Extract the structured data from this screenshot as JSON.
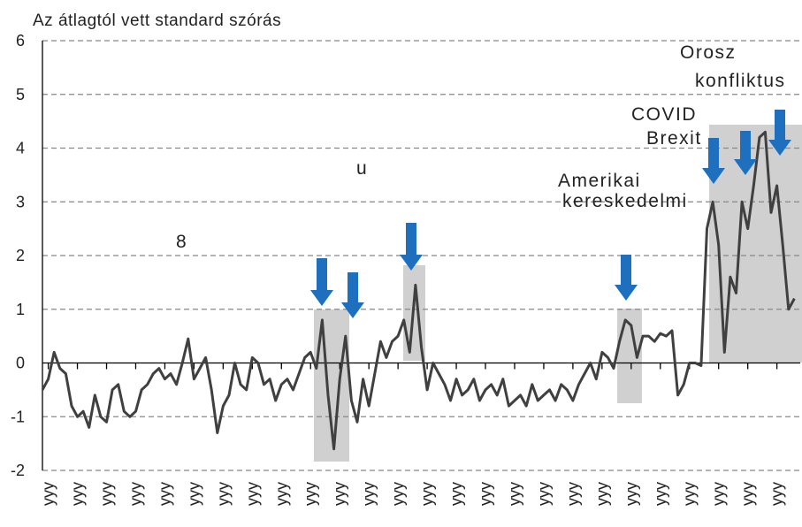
{
  "chart_data": {
    "type": "line",
    "title": "Az átlagtól vett standard szórás",
    "annotations": [
      "Orosz",
      "konfliktus",
      "COVID",
      "Brexit",
      "Amerikai",
      "kereskedelmi",
      "u",
      "8"
    ],
    "categories": [
      null,
      "yyy",
      null,
      null,
      null,
      null,
      "yyy",
      null,
      null,
      null,
      null,
      "yyy",
      null,
      null,
      null,
      null,
      "yyy",
      null,
      null,
      null,
      null,
      "yyy",
      null,
      null,
      null,
      null,
      "yyy",
      null,
      null,
      null,
      null,
      "yyy",
      null,
      null,
      null,
      null,
      "yyy",
      null,
      null,
      null,
      null,
      "yyy",
      null,
      null,
      null,
      null,
      "yyy",
      null,
      null,
      null,
      null,
      "yyy",
      null,
      null,
      null,
      null,
      "yyy",
      null,
      null,
      null,
      null,
      "yyy",
      null,
      null,
      null,
      null,
      "yyy",
      null,
      null,
      null,
      null,
      "yyy",
      null,
      null,
      null,
      null,
      "yyy",
      null,
      null,
      null,
      null,
      "yyy",
      null,
      null,
      null,
      null,
      "yyy",
      null,
      null,
      null,
      null,
      "yyy",
      null,
      null,
      null,
      null,
      "yyy",
      null,
      null,
      null,
      null,
      "yyy",
      null,
      null,
      null,
      null,
      "yyy",
      null,
      null,
      null,
      null,
      "yyy",
      null,
      null,
      null,
      null,
      "yyy",
      null,
      null,
      null,
      null,
      "yyy",
      null,
      null,
      null,
      null,
      "yyy",
      null,
      null,
      null
    ],
    "series": [
      {
        "color": "#404040",
        "values": [
          -0.5,
          -0.3,
          0.2,
          -0.1,
          -0.2,
          -0.8,
          -1.0,
          -0.9,
          -1.2,
          -0.6,
          -1.0,
          -1.1,
          -0.5,
          -0.4,
          -0.9,
          -1.0,
          -0.9,
          -0.5,
          -0.4,
          -0.2,
          -0.1,
          -0.3,
          -0.2,
          -0.4,
          0.0,
          0.45,
          -0.3,
          -0.1,
          0.1,
          -0.5,
          -1.3,
          -0.8,
          -0.6,
          0.0,
          -0.4,
          -0.5,
          0.1,
          0.0,
          -0.4,
          -0.3,
          -0.7,
          -0.4,
          -0.3,
          -0.5,
          -0.2,
          0.1,
          0.2,
          -0.1,
          0.8,
          -0.6,
          -1.6,
          -0.3,
          0.5,
          -0.7,
          -1.1,
          -0.3,
          -0.8,
          -0.2,
          0.4,
          0.1,
          0.4,
          0.5,
          0.8,
          0.2,
          1.45,
          0.3,
          -0.5,
          0.0,
          -0.2,
          -0.4,
          -0.7,
          -0.3,
          -0.6,
          -0.5,
          -0.3,
          -0.7,
          -0.5,
          -0.4,
          -0.6,
          -0.3,
          -0.8,
          -0.7,
          -0.6,
          -0.8,
          -0.4,
          -0.7,
          -0.6,
          -0.5,
          -0.7,
          -0.4,
          -0.5,
          -0.7,
          -0.4,
          -0.2,
          0.0,
          -0.3,
          0.2,
          0.1,
          -0.1,
          0.4,
          0.8,
          0.7,
          0.1,
          0.5,
          0.5,
          0.4,
          0.55,
          0.5,
          0.6,
          -0.6,
          -0.4,
          0.0,
          0.0,
          -0.05,
          2.5,
          3.0,
          2.2,
          0.2,
          1.6,
          1.3,
          3.0,
          2.5,
          3.3,
          4.2,
          4.3,
          2.8,
          3.3,
          2.2,
          1.0,
          1.2
        ]
      }
    ],
    "ylim": [
      -2,
      6
    ],
    "yticks": [
      -2,
      -1,
      0,
      1,
      2,
      3,
      4,
      5,
      6
    ],
    "grid": true
  }
}
